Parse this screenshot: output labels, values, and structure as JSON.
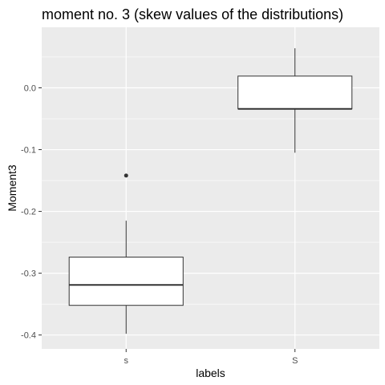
{
  "chart_data": {
    "type": "boxplot",
    "title": "moment no. 3 (skew values of the distributions)",
    "xlabel": "labels",
    "ylabel": "Moment3",
    "categories": [
      "s",
      "S"
    ],
    "ylim": [
      -0.4225,
      0.098
    ],
    "y_ticks": [
      0.0,
      -0.1,
      -0.2,
      -0.3,
      -0.4
    ],
    "y_tick_labels": [
      "0.0",
      "-0.1",
      "-0.2",
      "-0.3",
      "-0.4"
    ],
    "boxes": [
      {
        "category": "s",
        "lower_whisker": -0.398,
        "q1": -0.352,
        "median": -0.319,
        "q3": -0.274,
        "upper_whisker": -0.215,
        "outliers": [
          -0.142
        ]
      },
      {
        "category": "S",
        "lower_whisker": -0.105,
        "q1": -0.034,
        "median": -0.034,
        "q3": 0.019,
        "upper_whisker": 0.064,
        "outliers": []
      }
    ],
    "grid": true,
    "background": "#ebebeb",
    "grid_color": "#ffffff",
    "box_fill": "#ffffff",
    "box_stroke": "#333333"
  }
}
